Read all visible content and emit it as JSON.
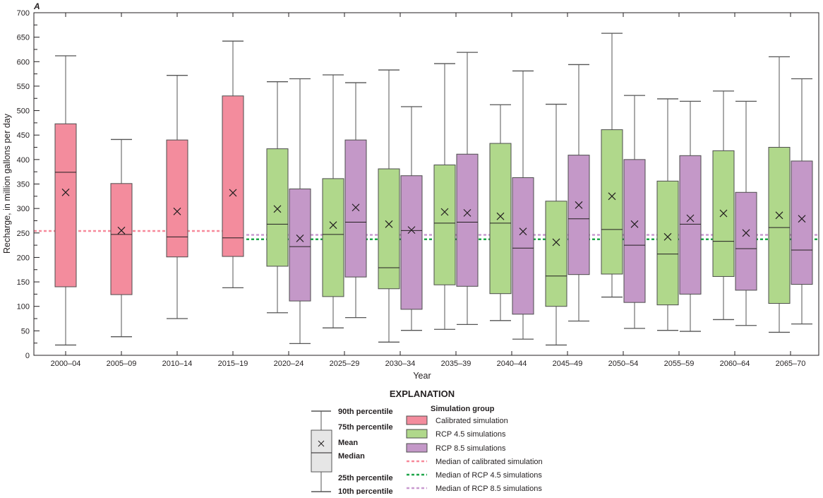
{
  "chart_data": {
    "type": "boxplot",
    "panel_label": "A",
    "xlabel": "Year",
    "ylabel": "Recharge, in million gallons per day",
    "ylim": [
      0,
      700
    ],
    "yticks": [
      0,
      50,
      100,
      150,
      200,
      250,
      300,
      350,
      400,
      450,
      500,
      550,
      600,
      650,
      700
    ],
    "grid": false,
    "categories": [
      "2000–04",
      "2005–09",
      "2010–14",
      "2015–19",
      "2020–24",
      "2025–29",
      "2030–34",
      "2035–39",
      "2040–44",
      "2045–49",
      "2050–54",
      "2055–59",
      "2060–64",
      "2065–70"
    ],
    "series": [
      {
        "name": "Calibrated simulation",
        "color": "#f38c9d",
        "boxes": [
          {
            "category": "2000–04",
            "p10": 21,
            "p25": 140,
            "median": 374,
            "mean": 333,
            "p75": 473,
            "p90": 612
          },
          {
            "category": "2005–09",
            "p10": 38,
            "p25": 124,
            "median": 247,
            "mean": 255,
            "p75": 351,
            "p90": 441
          },
          {
            "category": "2010–14",
            "p10": 75,
            "p25": 201,
            "median": 242,
            "mean": 294,
            "p75": 440,
            "p90": 572
          },
          {
            "category": "2015–19",
            "p10": 138,
            "p25": 202,
            "median": 240,
            "mean": 332,
            "p75": 530,
            "p90": 642
          }
        ]
      },
      {
        "name": "RCP 4.5 simulations",
        "color": "#b0d88b",
        "boxes": [
          {
            "category": "2020–24",
            "p10": 87,
            "p25": 182,
            "median": 268,
            "mean": 299,
            "p75": 422,
            "p90": 559
          },
          {
            "category": "2025–29",
            "p10": 56,
            "p25": 120,
            "median": 247,
            "mean": 266,
            "p75": 361,
            "p90": 573
          },
          {
            "category": "2030–34",
            "p10": 27,
            "p25": 136,
            "median": 179,
            "mean": 268,
            "p75": 381,
            "p90": 583
          },
          {
            "category": "2035–39",
            "p10": 53,
            "p25": 144,
            "median": 270,
            "mean": 293,
            "p75": 389,
            "p90": 596
          },
          {
            "category": "2040–44",
            "p10": 71,
            "p25": 126,
            "median": 270,
            "mean": 284,
            "p75": 433,
            "p90": 512
          },
          {
            "category": "2045–49",
            "p10": 21,
            "p25": 100,
            "median": 162,
            "mean": 231,
            "p75": 315,
            "p90": 513
          },
          {
            "category": "2050–54",
            "p10": 119,
            "p25": 166,
            "median": 257,
            "mean": 325,
            "p75": 461,
            "p90": 658
          },
          {
            "category": "2055–59",
            "p10": 51,
            "p25": 103,
            "median": 207,
            "mean": 242,
            "p75": 356,
            "p90": 524
          },
          {
            "category": "2060–64",
            "p10": 73,
            "p25": 161,
            "median": 233,
            "mean": 290,
            "p75": 418,
            "p90": 540
          },
          {
            "category": "2065–70",
            "p10": 47,
            "p25": 106,
            "median": 261,
            "mean": 286,
            "p75": 425,
            "p90": 610
          }
        ]
      },
      {
        "name": "RCP 8.5 simulations",
        "color": "#c498c8",
        "boxes": [
          {
            "category": "2020–24",
            "p10": 24,
            "p25": 111,
            "median": 222,
            "mean": 239,
            "p75": 340,
            "p90": 565
          },
          {
            "category": "2025–29",
            "p10": 77,
            "p25": 160,
            "median": 272,
            "mean": 302,
            "p75": 440,
            "p90": 557
          },
          {
            "category": "2030–34",
            "p10": 51,
            "p25": 94,
            "median": 255,
            "mean": 256,
            "p75": 367,
            "p90": 508
          },
          {
            "category": "2035–39",
            "p10": 63,
            "p25": 141,
            "median": 272,
            "mean": 291,
            "p75": 411,
            "p90": 619
          },
          {
            "category": "2040–44",
            "p10": 33,
            "p25": 84,
            "median": 219,
            "mean": 253,
            "p75": 363,
            "p90": 581
          },
          {
            "category": "2045–49",
            "p10": 70,
            "p25": 165,
            "median": 279,
            "mean": 307,
            "p75": 409,
            "p90": 594
          },
          {
            "category": "2050–54",
            "p10": 55,
            "p25": 108,
            "median": 225,
            "mean": 268,
            "p75": 400,
            "p90": 531
          },
          {
            "category": "2055–59",
            "p10": 49,
            "p25": 125,
            "median": 268,
            "mean": 280,
            "p75": 408,
            "p90": 519
          },
          {
            "category": "2060–64",
            "p10": 61,
            "p25": 133,
            "median": 218,
            "mean": 250,
            "p75": 333,
            "p90": 519
          },
          {
            "category": "2065–70",
            "p10": 64,
            "p25": 145,
            "median": 215,
            "mean": 279,
            "p75": 397,
            "p90": 565
          }
        ]
      }
    ],
    "reference_lines": [
      {
        "name": "Median of calibrated simulation",
        "value": 254,
        "color": "#f78a9b",
        "from": "2000–04",
        "to": "2015–19"
      },
      {
        "name": "Median of RCP 4.5 simulations",
        "value": 237,
        "color": "#1fa64a",
        "from": "2020–24",
        "to": "2065–70"
      },
      {
        "name": "Median of  RCP 8.5 simulations",
        "value": 246,
        "color": "#c99bd0",
        "from": "2020–24",
        "to": "2065–70"
      }
    ],
    "legend": {
      "title": "EXPLANATION",
      "group_heading": "Simulation group",
      "box_key": {
        "p90": "90th percentile",
        "p75": "75th percentile",
        "mean": "Mean",
        "median": "Median",
        "p25": "25th percentile",
        "p10": "10th percentile"
      },
      "placement": "bottom-center"
    }
  }
}
